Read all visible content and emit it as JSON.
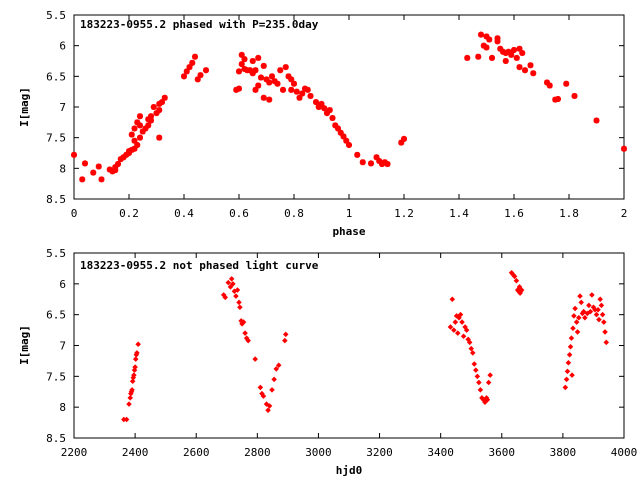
{
  "chart_data": [
    {
      "type": "scatter",
      "title": "183223-0955.2 phased with P=235.0day",
      "xlabel": "phase",
      "ylabel": "I[mag]",
      "xlim": [
        0,
        2
      ],
      "ylim": [
        5.5,
        8.5
      ],
      "y_inverted": true,
      "x_ticks": [
        0,
        0.2,
        0.4,
        0.6,
        0.8,
        1,
        1.2,
        1.4,
        1.6,
        1.8,
        2
      ],
      "x_tick_labels": [
        "0",
        "0.2",
        "0.4",
        "0.6",
        "0.8",
        "1",
        "1.2",
        "1.4",
        "1.6",
        "1.8",
        "2"
      ],
      "y_ticks": [
        5.5,
        6,
        6.5,
        7,
        7.5,
        8,
        8.5
      ],
      "y_tick_labels": [
        "5.5",
        "6",
        "6.5",
        "7",
        "7.5",
        "8",
        "8.5"
      ],
      "grid": false,
      "color": "#ff0000",
      "marker": "star",
      "points": [
        [
          0.0,
          7.78
        ],
        [
          0.03,
          8.18
        ],
        [
          0.04,
          7.92
        ],
        [
          0.07,
          8.07
        ],
        [
          0.09,
          7.97
        ],
        [
          0.1,
          8.18
        ],
        [
          0.13,
          8.02
        ],
        [
          0.14,
          8.05
        ],
        [
          0.15,
          7.98
        ],
        [
          0.15,
          8.03
        ],
        [
          0.16,
          7.93
        ],
        [
          0.17,
          7.85
        ],
        [
          0.18,
          7.82
        ],
        [
          0.19,
          7.78
        ],
        [
          0.2,
          7.72
        ],
        [
          0.2,
          7.75
        ],
        [
          0.21,
          7.7
        ],
        [
          0.22,
          7.68
        ],
        [
          0.21,
          7.45
        ],
        [
          0.22,
          7.35
        ],
        [
          0.22,
          7.55
        ],
        [
          0.23,
          7.25
        ],
        [
          0.23,
          7.62
        ],
        [
          0.24,
          7.3
        ],
        [
          0.24,
          7.15
        ],
        [
          0.24,
          7.5
        ],
        [
          0.25,
          7.4
        ],
        [
          0.26,
          7.35
        ],
        [
          0.27,
          7.3
        ],
        [
          0.27,
          7.2
        ],
        [
          0.28,
          7.22
        ],
        [
          0.28,
          7.15
        ],
        [
          0.29,
          7.0
        ],
        [
          0.3,
          7.1
        ],
        [
          0.31,
          7.05
        ],
        [
          0.31,
          6.95
        ],
        [
          0.32,
          6.92
        ],
        [
          0.33,
          6.85
        ],
        [
          0.31,
          7.5
        ],
        [
          0.4,
          6.5
        ],
        [
          0.41,
          6.42
        ],
        [
          0.42,
          6.35
        ],
        [
          0.43,
          6.28
        ],
        [
          0.44,
          6.18
        ],
        [
          0.45,
          6.55
        ],
        [
          0.46,
          6.48
        ],
        [
          0.48,
          6.4
        ],
        [
          0.59,
          6.72
        ],
        [
          0.6,
          6.7
        ],
        [
          0.6,
          6.42
        ],
        [
          0.61,
          6.3
        ],
        [
          0.61,
          6.15
        ],
        [
          0.62,
          6.22
        ],
        [
          0.62,
          6.38
        ],
        [
          0.63,
          6.4
        ],
        [
          0.64,
          6.4
        ],
        [
          0.65,
          6.45
        ],
        [
          0.65,
          6.25
        ],
        [
          0.66,
          6.4
        ],
        [
          0.66,
          6.72
        ],
        [
          0.67,
          6.2
        ],
        [
          0.67,
          6.65
        ],
        [
          0.68,
          6.52
        ],
        [
          0.69,
          6.33
        ],
        [
          0.69,
          6.85
        ],
        [
          0.7,
          6.55
        ],
        [
          0.71,
          6.88
        ],
        [
          0.71,
          6.6
        ],
        [
          0.72,
          6.5
        ],
        [
          0.73,
          6.58
        ],
        [
          0.74,
          6.62
        ],
        [
          0.75,
          6.4
        ],
        [
          0.76,
          6.72
        ],
        [
          0.77,
          6.35
        ],
        [
          0.78,
          6.5
        ],
        [
          0.79,
          6.55
        ],
        [
          0.79,
          6.72
        ],
        [
          0.8,
          6.62
        ],
        [
          0.81,
          6.75
        ],
        [
          0.82,
          6.85
        ],
        [
          0.83,
          6.78
        ],
        [
          0.84,
          6.7
        ],
        [
          0.85,
          6.72
        ],
        [
          0.86,
          6.82
        ],
        [
          0.88,
          6.92
        ],
        [
          0.89,
          7.0
        ],
        [
          0.9,
          6.95
        ],
        [
          0.91,
          7.02
        ],
        [
          0.92,
          7.1
        ],
        [
          0.93,
          7.05
        ],
        [
          0.94,
          7.18
        ],
        [
          0.95,
          7.3
        ],
        [
          0.96,
          7.35
        ],
        [
          0.97,
          7.42
        ],
        [
          0.98,
          7.48
        ],
        [
          0.99,
          7.55
        ],
        [
          1.0,
          7.62
        ],
        [
          1.03,
          7.78
        ],
        [
          1.05,
          7.9
        ],
        [
          1.08,
          7.92
        ],
        [
          1.1,
          7.82
        ],
        [
          1.11,
          7.88
        ],
        [
          1.12,
          7.93
        ],
        [
          1.13,
          7.9
        ],
        [
          1.14,
          7.93
        ],
        [
          1.19,
          7.58
        ],
        [
          1.2,
          7.52
        ],
        [
          1.43,
          6.2
        ],
        [
          1.47,
          6.18
        ],
        [
          1.48,
          5.82
        ],
        [
          1.49,
          6.0
        ],
        [
          1.5,
          5.85
        ],
        [
          1.5,
          6.03
        ],
        [
          1.51,
          5.9
        ],
        [
          1.52,
          6.2
        ],
        [
          1.54,
          5.88
        ],
        [
          1.54,
          5.93
        ],
        [
          1.55,
          6.05
        ],
        [
          1.56,
          6.1
        ],
        [
          1.57,
          6.12
        ],
        [
          1.57,
          6.25
        ],
        [
          1.58,
          6.1
        ],
        [
          1.59,
          6.15
        ],
        [
          1.6,
          6.07
        ],
        [
          1.61,
          6.2
        ],
        [
          1.62,
          6.05
        ],
        [
          1.62,
          6.35
        ],
        [
          1.63,
          6.12
        ],
        [
          1.64,
          6.4
        ],
        [
          1.66,
          6.32
        ],
        [
          1.67,
          6.45
        ],
        [
          1.72,
          6.6
        ],
        [
          1.73,
          6.65
        ],
        [
          1.75,
          6.88
        ],
        [
          1.76,
          6.87
        ],
        [
          1.79,
          6.62
        ],
        [
          1.82,
          6.82
        ],
        [
          1.9,
          7.22
        ],
        [
          2.0,
          7.68
        ]
      ]
    },
    {
      "type": "scatter",
      "title": "183223-0955.2 not phased light curve",
      "xlabel": "hjd0",
      "ylabel": "I[mag]",
      "xlim": [
        2200,
        4000
      ],
      "ylim": [
        5.5,
        8.5
      ],
      "y_inverted": true,
      "x_ticks": [
        2200,
        2400,
        2600,
        2800,
        3000,
        3200,
        3400,
        3600,
        3800,
        4000
      ],
      "x_tick_labels": [
        "2200",
        "2400",
        "2600",
        "2800",
        "3000",
        "3200",
        "3400",
        "3600",
        "3800",
        "4000"
      ],
      "y_ticks": [
        5.5,
        6,
        6.5,
        7,
        7.5,
        8,
        8.5
      ],
      "y_tick_labels": [
        "5.5",
        "6",
        "6.5",
        "7",
        "7.5",
        "8",
        "8.5"
      ],
      "grid": false,
      "color": "#ff0000",
      "marker": "diamond",
      "points": [
        [
          2363,
          8.2
        ],
        [
          2372,
          8.2
        ],
        [
          2380,
          7.95
        ],
        [
          2384,
          7.85
        ],
        [
          2386,
          7.78
        ],
        [
          2388,
          7.75
        ],
        [
          2390,
          7.72
        ],
        [
          2392,
          7.58
        ],
        [
          2394,
          7.52
        ],
        [
          2396,
          7.48
        ],
        [
          2398,
          7.4
        ],
        [
          2400,
          7.35
        ],
        [
          2402,
          7.22
        ],
        [
          2404,
          7.15
        ],
        [
          2406,
          7.12
        ],
        [
          2410,
          6.98
        ],
        [
          2690,
          6.18
        ],
        [
          2695,
          6.22
        ],
        [
          2705,
          5.98
        ],
        [
          2712,
          6.05
        ],
        [
          2716,
          5.92
        ],
        [
          2720,
          6.0
        ],
        [
          2725,
          6.12
        ],
        [
          2730,
          6.2
        ],
        [
          2735,
          6.1
        ],
        [
          2740,
          6.3
        ],
        [
          2743,
          6.38
        ],
        [
          2747,
          6.6
        ],
        [
          2750,
          6.65
        ],
        [
          2755,
          6.62
        ],
        [
          2760,
          6.8
        ],
        [
          2765,
          6.88
        ],
        [
          2770,
          6.92
        ],
        [
          2793,
          7.22
        ],
        [
          2810,
          7.68
        ],
        [
          2815,
          7.78
        ],
        [
          2820,
          7.82
        ],
        [
          2830,
          7.95
        ],
        [
          2835,
          8.05
        ],
        [
          2840,
          7.98
        ],
        [
          2848,
          7.72
        ],
        [
          2855,
          7.55
        ],
        [
          2862,
          7.38
        ],
        [
          2870,
          7.32
        ],
        [
          2890,
          6.92
        ],
        [
          2893,
          6.82
        ],
        [
          3432,
          6.7
        ],
        [
          3438,
          6.25
        ],
        [
          3443,
          6.75
        ],
        [
          3448,
          6.62
        ],
        [
          3452,
          6.52
        ],
        [
          3456,
          6.8
        ],
        [
          3460,
          6.55
        ],
        [
          3465,
          6.5
        ],
        [
          3470,
          6.62
        ],
        [
          3475,
          6.85
        ],
        [
          3480,
          6.7
        ],
        [
          3485,
          6.75
        ],
        [
          3490,
          6.9
        ],
        [
          3495,
          6.95
        ],
        [
          3500,
          7.05
        ],
        [
          3505,
          7.12
        ],
        [
          3510,
          7.3
        ],
        [
          3515,
          7.4
        ],
        [
          3520,
          7.5
        ],
        [
          3525,
          7.6
        ],
        [
          3530,
          7.72
        ],
        [
          3535,
          7.85
        ],
        [
          3540,
          7.88
        ],
        [
          3545,
          7.92
        ],
        [
          3550,
          7.85
        ],
        [
          3553,
          7.88
        ],
        [
          3557,
          7.6
        ],
        [
          3562,
          7.48
        ],
        [
          3632,
          5.82
        ],
        [
          3637,
          5.85
        ],
        [
          3642,
          5.88
        ],
        [
          3648,
          5.95
        ],
        [
          3652,
          6.1
        ],
        [
          3655,
          6.12
        ],
        [
          3658,
          6.05
        ],
        [
          3660,
          6.15
        ],
        [
          3662,
          6.12
        ],
        [
          3665,
          6.1
        ],
        [
          3808,
          7.68
        ],
        [
          3812,
          7.55
        ],
        [
          3815,
          7.42
        ],
        [
          3818,
          7.28
        ],
        [
          3822,
          7.15
        ],
        [
          3825,
          7.02
        ],
        [
          3828,
          6.88
        ],
        [
          3830,
          7.48
        ],
        [
          3833,
          6.72
        ],
        [
          3836,
          6.52
        ],
        [
          3840,
          6.4
        ],
        [
          3845,
          6.62
        ],
        [
          3848,
          6.78
        ],
        [
          3852,
          6.55
        ],
        [
          3856,
          6.2
        ],
        [
          3860,
          6.3
        ],
        [
          3864,
          6.48
        ],
        [
          3868,
          6.45
        ],
        [
          3872,
          6.55
        ],
        [
          3880,
          6.48
        ],
        [
          3885,
          6.35
        ],
        [
          3890,
          6.45
        ],
        [
          3895,
          6.18
        ],
        [
          3900,
          6.38
        ],
        [
          3905,
          6.42
        ],
        [
          3910,
          6.5
        ],
        [
          3915,
          6.42
        ],
        [
          3918,
          6.58
        ],
        [
          3922,
          6.25
        ],
        [
          3926,
          6.35
        ],
        [
          3930,
          6.5
        ],
        [
          3934,
          6.62
        ],
        [
          3938,
          6.78
        ],
        [
          3942,
          6.95
        ]
      ]
    }
  ]
}
